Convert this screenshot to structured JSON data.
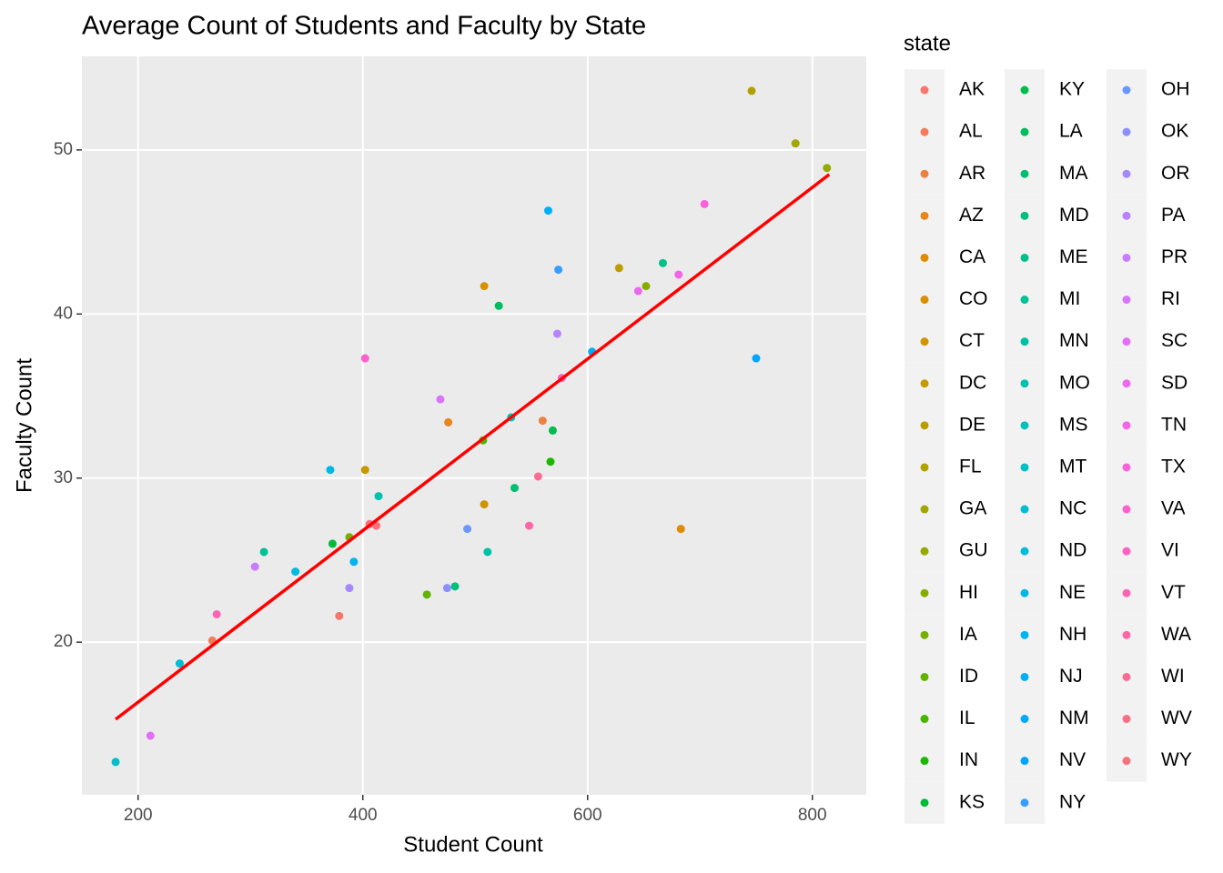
{
  "chart_data": {
    "type": "scatter",
    "title": "Average Count of Students and Faculty by State",
    "x_label": "Student Count",
    "y_label": "Faculty Count",
    "legend_title": "state",
    "legend_position": "right",
    "xlim": [
      150,
      848
    ],
    "ylim": [
      10.7,
      55.7
    ],
    "xticks": [
      200,
      400,
      600,
      800
    ],
    "yticks": [
      20,
      30,
      40,
      50
    ],
    "grid": true,
    "trend": {
      "color": "#FF0000",
      "x": [
        180,
        815
      ],
      "y": [
        15.3,
        48.5
      ]
    },
    "series": [
      {
        "name": "AK",
        "color": "#F8766D",
        "x": [
          379
        ],
        "y": [
          21.6
        ]
      },
      {
        "name": "AL",
        "color": "#F37B59",
        "x": [
          266
        ],
        "y": [
          20.1
        ]
      },
      {
        "name": "AR",
        "color": "#ED8141",
        "x": [
          560
        ],
        "y": [
          33.5
        ]
      },
      {
        "name": "AZ",
        "color": "#E7851E",
        "x": [
          476
        ],
        "y": [
          33.4
        ]
      },
      {
        "name": "CA",
        "color": "#E08A00",
        "x": [
          683
        ],
        "y": [
          26.9
        ]
      },
      {
        "name": "CO",
        "color": "#D89000",
        "x": [
          508
        ],
        "y": [
          41.7
        ]
      },
      {
        "name": "CT",
        "color": "#CF9400",
        "x": [
          508
        ],
        "y": [
          28.4
        ]
      },
      {
        "name": "DC",
        "color": "#C59900",
        "x": [
          402
        ],
        "y": [
          30.5
        ]
      },
      {
        "name": "DE",
        "color": "#BB9D00",
        "x": [
          628
        ],
        "y": [
          42.8
        ]
      },
      {
        "name": "FL",
        "color": "#B0A100",
        "x": [
          746
        ],
        "y": [
          53.6
        ]
      },
      {
        "name": "GA",
        "color": "#A3A500",
        "x": [
          785
        ],
        "y": [
          50.4
        ]
      },
      {
        "name": "GU",
        "color": "#96A900",
        "x": [
          813
        ],
        "y": [
          48.9
        ]
      },
      {
        "name": "HI",
        "color": "#87AC00",
        "x": [
          652
        ],
        "y": [
          41.7
        ]
      },
      {
        "name": "IA",
        "color": "#76AF00",
        "x": [
          388
        ],
        "y": [
          26.4
        ]
      },
      {
        "name": "ID",
        "color": "#62B200",
        "x": [
          457
        ],
        "y": [
          22.9
        ]
      },
      {
        "name": "IL",
        "color": "#49B500",
        "x": [
          507
        ],
        "y": [
          32.3
        ]
      },
      {
        "name": "IN",
        "color": "#1CB800",
        "x": [
          567
        ],
        "y": [
          31.0
        ]
      },
      {
        "name": "KS",
        "color": "#00BA38",
        "x": [
          373
        ],
        "y": [
          26.0
        ]
      },
      {
        "name": "KY",
        "color": "#00BC4E",
        "x": [
          569
        ],
        "y": [
          32.9
        ]
      },
      {
        "name": "LA",
        "color": "#00BD5F",
        "x": [
          521
        ],
        "y": [
          40.5
        ]
      },
      {
        "name": "MA",
        "color": "#00BF6E",
        "x": [
          535
        ],
        "y": [
          29.4
        ]
      },
      {
        "name": "MD",
        "color": "#00C07C",
        "x": [
          482
        ],
        "y": [
          23.4
        ]
      },
      {
        "name": "ME",
        "color": "#00C08A",
        "x": [
          667
        ],
        "y": [
          43.1
        ]
      },
      {
        "name": "MI",
        "color": "#00C197",
        "x": [
          312
        ],
        "y": [
          25.5
        ]
      },
      {
        "name": "MN",
        "color": "#00C1A3",
        "x": [
          511
        ],
        "y": [
          25.5
        ]
      },
      {
        "name": "MO",
        "color": "#00C0AF",
        "x": [
          414
        ],
        "y": [
          28.9
        ]
      },
      {
        "name": "MS",
        "color": "#00C0BB",
        "x": [
          532
        ],
        "y": [
          33.7
        ]
      },
      {
        "name": "MT",
        "color": "#00BFC6",
        "x": [
          180
        ],
        "y": [
          12.7
        ]
      },
      {
        "name": "NC",
        "color": "#00BDD1",
        "x": [
          237
        ],
        "y": [
          18.7
        ]
      },
      {
        "name": "ND",
        "color": "#00BBDB",
        "x": [
          340
        ],
        "y": [
          24.3
        ]
      },
      {
        "name": "NE",
        "color": "#00B8E5",
        "x": [
          371
        ],
        "y": [
          30.5
        ]
      },
      {
        "name": "NH",
        "color": "#00B4EF",
        "x": [
          392
        ],
        "y": [
          24.9
        ]
      },
      {
        "name": "NJ",
        "color": "#00B0F6",
        "x": [
          565
        ],
        "y": [
          46.3
        ]
      },
      {
        "name": "NM",
        "color": "#00ABFD",
        "x": [
          604
        ],
        "y": [
          37.7
        ]
      },
      {
        "name": "NV",
        "color": "#00A5FF",
        "x": [
          750
        ],
        "y": [
          37.3
        ]
      },
      {
        "name": "NY",
        "color": "#359EFF",
        "x": [
          574
        ],
        "y": [
          42.7
        ]
      },
      {
        "name": "OH",
        "color": "#6B97FF",
        "x": [
          493
        ],
        "y": [
          26.9
        ]
      },
      {
        "name": "OK",
        "color": "#8C8FFF",
        "x": [
          475
        ],
        "y": [
          23.3
        ]
      },
      {
        "name": "OR",
        "color": "#A588FF",
        "x": [
          388
        ],
        "y": [
          23.3
        ]
      },
      {
        "name": "PA",
        "color": "#B882FF",
        "x": [
          573
        ],
        "y": [
          38.8
        ]
      },
      {
        "name": "PR",
        "color": "#C97CFF",
        "x": [
          304
        ],
        "y": [
          24.6
        ]
      },
      {
        "name": "RI",
        "color": "#D776FC",
        "x": [
          469
        ],
        "y": [
          34.8
        ]
      },
      {
        "name": "SC",
        "color": "#E36FF6",
        "x": [
          211
        ],
        "y": [
          14.3
        ]
      },
      {
        "name": "SD",
        "color": "#EC69EF",
        "x": [
          645
        ],
        "y": [
          41.4
        ]
      },
      {
        "name": "TN",
        "color": "#F465E6",
        "x": [
          681
        ],
        "y": [
          42.4
        ]
      },
      {
        "name": "TX",
        "color": "#FA62DB",
        "x": [
          704
        ],
        "y": [
          46.7
        ]
      },
      {
        "name": "VA",
        "color": "#FD61CF",
        "x": [
          402
        ],
        "y": [
          37.3
        ]
      },
      {
        "name": "VI",
        "color": "#FF61C2",
        "x": [
          577
        ],
        "y": [
          36.1
        ]
      },
      {
        "name": "VT",
        "color": "#FF63B4",
        "x": [
          270
        ],
        "y": [
          21.7
        ]
      },
      {
        "name": "WA",
        "color": "#FF66A5",
        "x": [
          548
        ],
        "y": [
          27.1
        ]
      },
      {
        "name": "WI",
        "color": "#FD6A95",
        "x": [
          556
        ],
        "y": [
          30.1
        ]
      },
      {
        "name": "WV",
        "color": "#F96F85",
        "x": [
          406
        ],
        "y": [
          27.2
        ]
      },
      {
        "name": "WY",
        "color": "#F9727B",
        "x": [
          412
        ],
        "y": [
          27.1
        ]
      }
    ]
  }
}
